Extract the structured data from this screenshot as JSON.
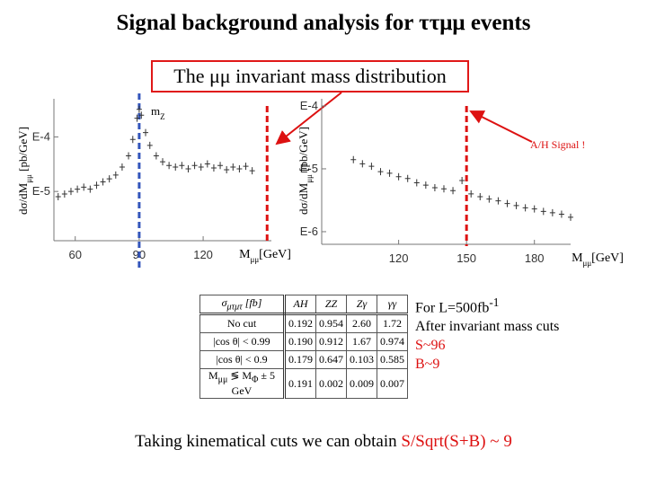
{
  "title": "Signal background analysis for ττμμ events",
  "subtitle": "The μμ invariant mass distribution",
  "chart_data": [
    {
      "type": "scatter",
      "log_y": true,
      "color": "#333333",
      "y_label": [
        "dσ/dM",
        "μμ",
        " [pb/GeV]"
      ],
      "x_label": [
        "M",
        "μμ",
        "[GeV]"
      ],
      "annotation": [
        "m",
        "Z"
      ],
      "x": [
        52,
        55,
        58,
        61,
        64,
        67,
        70,
        73,
        76,
        79,
        82,
        85,
        87,
        89,
        90,
        91,
        93,
        95,
        98,
        101,
        104,
        107,
        110,
        113,
        116,
        119,
        122,
        125,
        128,
        131,
        134,
        137,
        140,
        143
      ],
      "values": [
        8e-06,
        9e-06,
        1e-05,
        1.1e-05,
        1.2e-05,
        1.1e-05,
        1.3e-05,
        1.5e-05,
        1.7e-05,
        2e-05,
        2.8e-05,
        4.5e-05,
        9e-05,
        0.00022,
        0.00032,
        0.00025,
        0.00012,
        7e-05,
        4.5e-05,
        3.5e-05,
        3e-05,
        2.8e-05,
        3e-05,
        2.6e-05,
        3e-05,
        2.8e-05,
        3.2e-05,
        2.7e-05,
        3e-05,
        2.5e-05,
        2.8e-05,
        2.6e-05,
        2.9e-05,
        2.4e-05
      ],
      "xlim": [
        50,
        152
      ],
      "xticks": [
        60,
        90,
        120
      ],
      "ylim": [
        1.25e-06,
        0.0005
      ],
      "yticks": [
        {
          "value": 0.0001,
          "label": "E-4"
        },
        {
          "value": 1e-05,
          "label": "E-5"
        }
      ],
      "markers": [
        {
          "x": 90,
          "color": "#3355bb"
        },
        {
          "x": 150,
          "color": "#dd1111"
        }
      ]
    },
    {
      "type": "scatter",
      "log_y": true,
      "color": "#333333",
      "y_label": [
        "dσ/dM",
        "μμ",
        " [pb/GeV]"
      ],
      "x_label": [
        "M",
        "μμ",
        "[GeV]"
      ],
      "annotation": "A/H Signal !",
      "x": [
        100,
        104,
        108,
        112,
        116,
        120,
        124,
        128,
        132,
        136,
        140,
        144,
        148,
        152,
        156,
        160,
        164,
        168,
        172,
        176,
        180,
        184,
        188,
        192,
        196
      ],
      "values": [
        1.4e-05,
        1.2e-05,
        1.1e-05,
        9e-06,
        8.5e-06,
        7.5e-06,
        7e-06,
        6e-06,
        5.5e-06,
        5e-06,
        4.8e-06,
        4.5e-06,
        6.5e-06,
        4e-06,
        3.6e-06,
        3.3e-06,
        3.1e-06,
        2.8e-06,
        2.6e-06,
        2.4e-06,
        2.3e-06,
        2.1e-06,
        2e-06,
        1.9e-06,
        1.7e-06
      ],
      "xlim": [
        86,
        196
      ],
      "xticks": [
        120,
        150,
        180
      ],
      "ylim": [
        6.3e-07,
        0.00013
      ],
      "yticks": [
        {
          "value": 0.0001,
          "label": "E-4"
        },
        {
          "value": 1e-05,
          "label": "E-5"
        },
        {
          "value": 1e-06,
          "label": "E-6"
        }
      ],
      "markers": [
        {
          "x": 150,
          "color": "#dd1111"
        }
      ]
    }
  ],
  "table": {
    "header": [
      [
        "σ",
        "μτμτ",
        " [fb]"
      ],
      "AH",
      "ZZ",
      "Zγ",
      "γγ"
    ],
    "rows": [
      [
        "No cut",
        "0.192",
        "0.954",
        "2.60",
        "1.72"
      ],
      [
        "|cos θ| < 0.99",
        "0.190",
        "0.912",
        "1.67",
        "0.974"
      ],
      [
        "|cos θ| < 0.9",
        "0.179",
        "0.647",
        "0.103",
        "0.585"
      ],
      [
        [
          "M",
          "μμ",
          " ≶ M",
          "Φ",
          " ± 5 GeV"
        ],
        "0.191",
        "0.002",
        "0.009",
        "0.007"
      ]
    ]
  },
  "notes": {
    "luminosity": [
      "For L=500fb",
      "-1"
    ],
    "cuts": "After invariant mass cuts",
    "signal": "S~96",
    "background": "B~9"
  },
  "conclusion": {
    "text": "Taking kinematical cuts we can obtain ",
    "highlight": "S/Sqrt(S+B) ~ 9"
  }
}
